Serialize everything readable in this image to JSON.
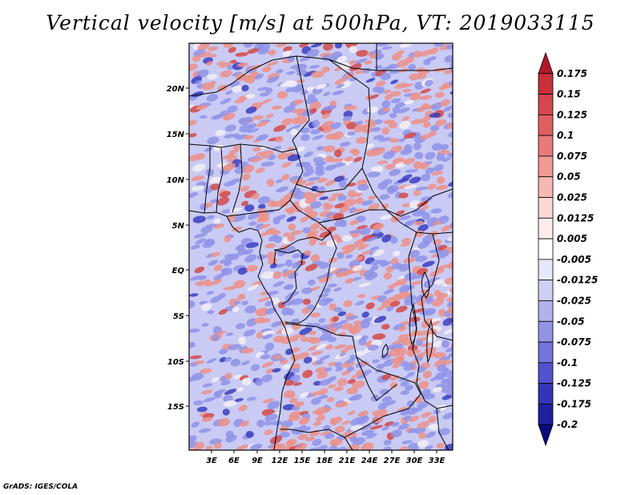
{
  "title": "Vertical velocity [m/s] at 500hPa, VT: 2019033115",
  "credit": "GrADS: IGES/COLA",
  "lat_ticks": [
    "20N",
    "15N",
    "10N",
    "5N",
    "EQ",
    "5S",
    "10S",
    "15S"
  ],
  "lon_ticks": [
    "3E",
    "6E",
    "9E",
    "12E",
    "15E",
    "18E",
    "21E",
    "24E",
    "27E",
    "30E",
    "33E"
  ],
  "colorbar": {
    "labels": [
      "0.175",
      "0.15",
      "0.125",
      "0.1",
      "0.075",
      "0.05",
      "0.025",
      "0.0125",
      "0.005",
      "-0.005",
      "-0.0125",
      "-0.025",
      "-0.05",
      "-0.075",
      "-0.1",
      "-0.125",
      "-0.175",
      "-0.2"
    ],
    "colors": [
      "#b2182b",
      "#c8303a",
      "#d6474d",
      "#e06060",
      "#e87b78",
      "#f09a94",
      "#f6b8b2",
      "#fbd6d2",
      "#fdeceb",
      "#ffffff",
      "#e8e8fb",
      "#cfcff5",
      "#b2b2ef",
      "#9393e6",
      "#7474dc",
      "#5252cc",
      "#3434b8",
      "#1f1fa0",
      "#0a0a80"
    ]
  },
  "field_colors": {
    "background": "#c9cbf4",
    "positive": "#ec9088",
    "strong_positive": "#d34a48",
    "negative": "#8f93e6",
    "strong_negative": "#3b3fc0",
    "neutral": "#f4f0f4"
  }
}
